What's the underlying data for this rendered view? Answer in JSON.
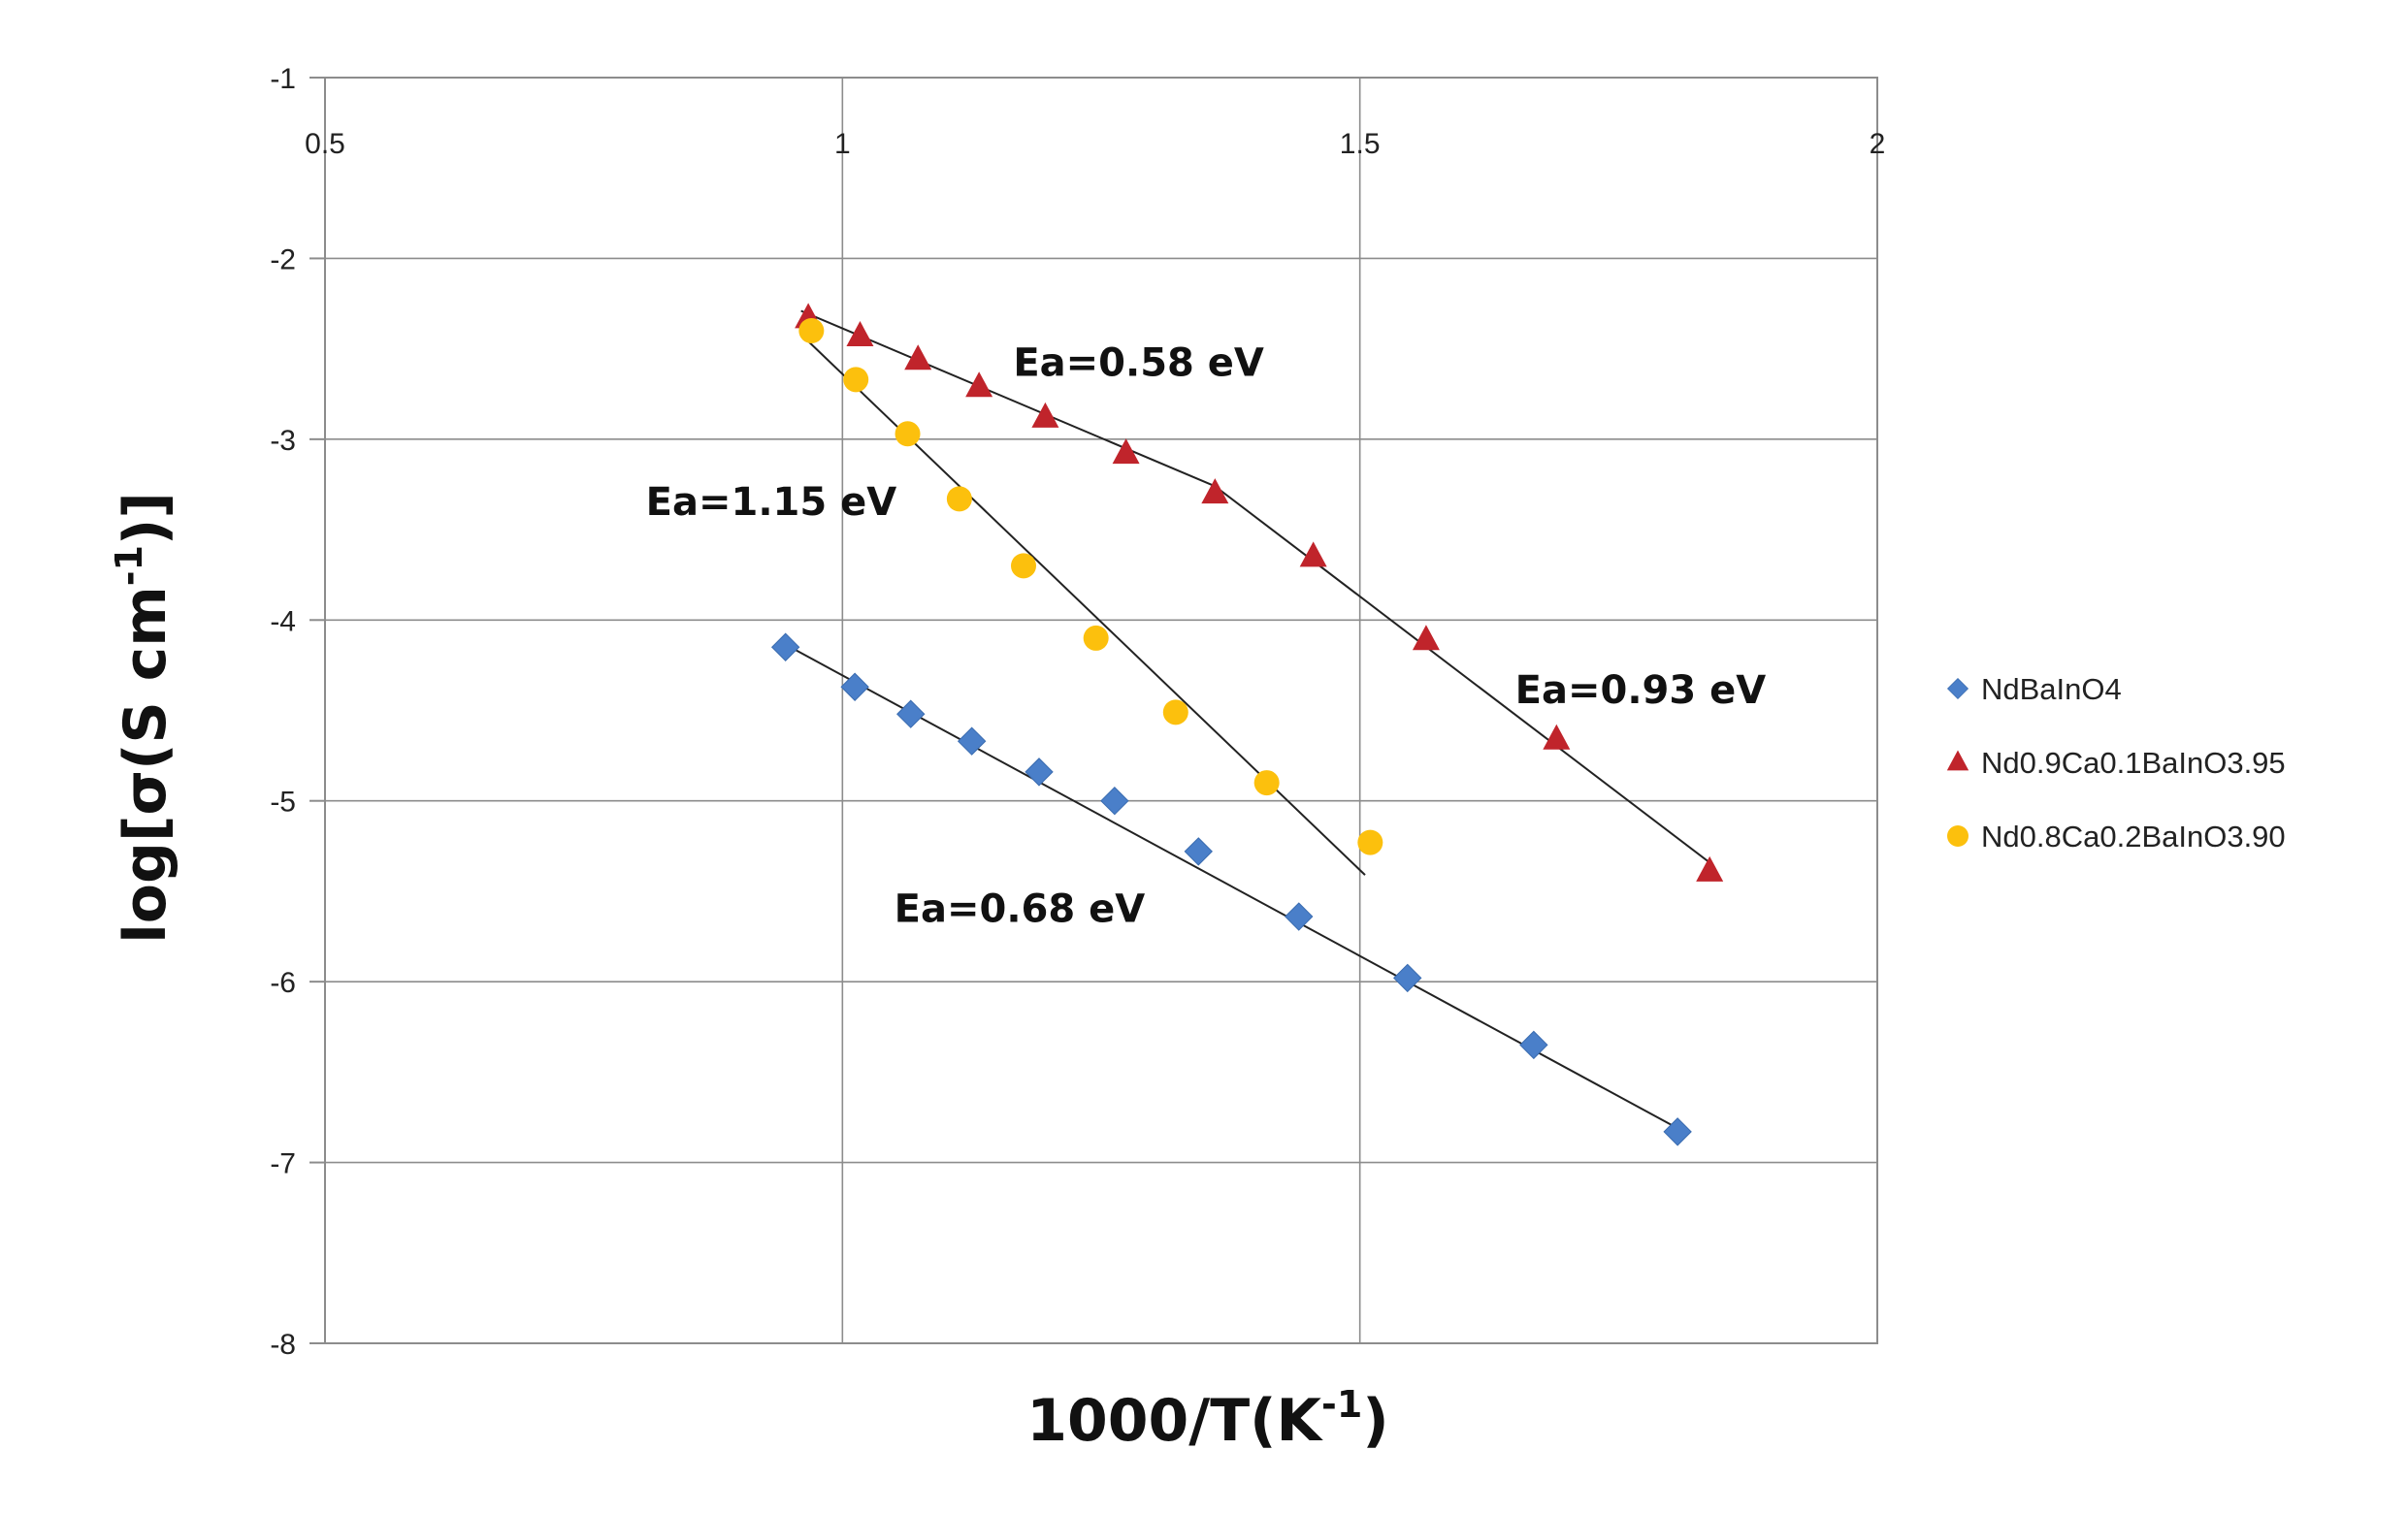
{
  "chart_data": {
    "type": "scatter",
    "xlabel": "1000/T(K",
    "xlabel_sup": "-1",
    "xlabel_tail": ")",
    "ylabel": "log[σ(S cm",
    "ylabel_sup": "-1",
    "ylabel_tail": ")]",
    "xlim": [
      0.5,
      2
    ],
    "ylim": [
      -8,
      -1
    ],
    "xticks": [
      "0.5",
      "1",
      "1.5",
      "2"
    ],
    "yticks": [
      "-1",
      "-2",
      "-3",
      "-4",
      "-5",
      "-6",
      "-7",
      "-8"
    ],
    "grid": true,
    "x_tick_labels_position": "top",
    "legend_position": "right",
    "series": [
      {
        "name": "NdBaInO4",
        "marker": "diamond",
        "color": "#4a7fc9",
        "x": [
          0.945,
          1.012,
          1.066,
          1.125,
          1.19,
          1.263,
          1.344,
          1.441,
          1.546,
          1.668,
          1.807
        ],
        "y": [
          -4.15,
          -4.37,
          -4.52,
          -4.67,
          -4.84,
          -5.0,
          -5.28,
          -5.64,
          -5.98,
          -6.35,
          -6.83
        ],
        "fit": {
          "x": [
            0.94,
            1.81
          ],
          "y": [
            -4.12,
            -6.82
          ]
        }
      },
      {
        "name": "Nd0.9Ca0.1BaInO3.95",
        "marker": "triangle",
        "color": "#c0242b",
        "x": [
          0.967,
          1.017,
          1.073,
          1.132,
          1.196,
          1.274,
          1.36,
          1.455,
          1.564,
          1.69,
          1.838
        ],
        "y": [
          -2.33,
          -2.43,
          -2.56,
          -2.71,
          -2.88,
          -3.08,
          -3.3,
          -3.65,
          -4.11,
          -4.66,
          -5.39
        ],
        "fit_segments": [
          {
            "x": [
              0.96,
              1.36
            ],
            "y": [
              -2.29,
              -3.26
            ]
          },
          {
            "x": [
              1.36,
              1.84
            ],
            "y": [
              -3.26,
              -5.35
            ]
          }
        ]
      },
      {
        "name": "Nd0.8Ca0.2BaInO3.90",
        "marker": "circle",
        "color": "#fcc00d",
        "x": [
          0.97,
          1.013,
          1.063,
          1.113,
          1.175,
          1.245,
          1.322,
          1.41,
          1.51
        ],
        "y": [
          -2.4,
          -2.67,
          -2.97,
          -3.33,
          -3.7,
          -4.1,
          -4.51,
          -4.9,
          -5.23
        ],
        "fit": {
          "x": [
            0.96,
            1.505
          ],
          "y": [
            -2.42,
            -5.41
          ]
        }
      }
    ],
    "annotations": [
      {
        "text": "Ea=0.58 eV",
        "x": 1.165,
        "y": -2.65
      },
      {
        "text": "Ea=1.15 eV",
        "x": 0.81,
        "y": -3.42
      },
      {
        "text": "Ea=0.93 eV",
        "x": 1.65,
        "y": -4.46
      },
      {
        "text": "Ea=0.68 eV",
        "x": 1.05,
        "y": -5.67
      }
    ]
  }
}
